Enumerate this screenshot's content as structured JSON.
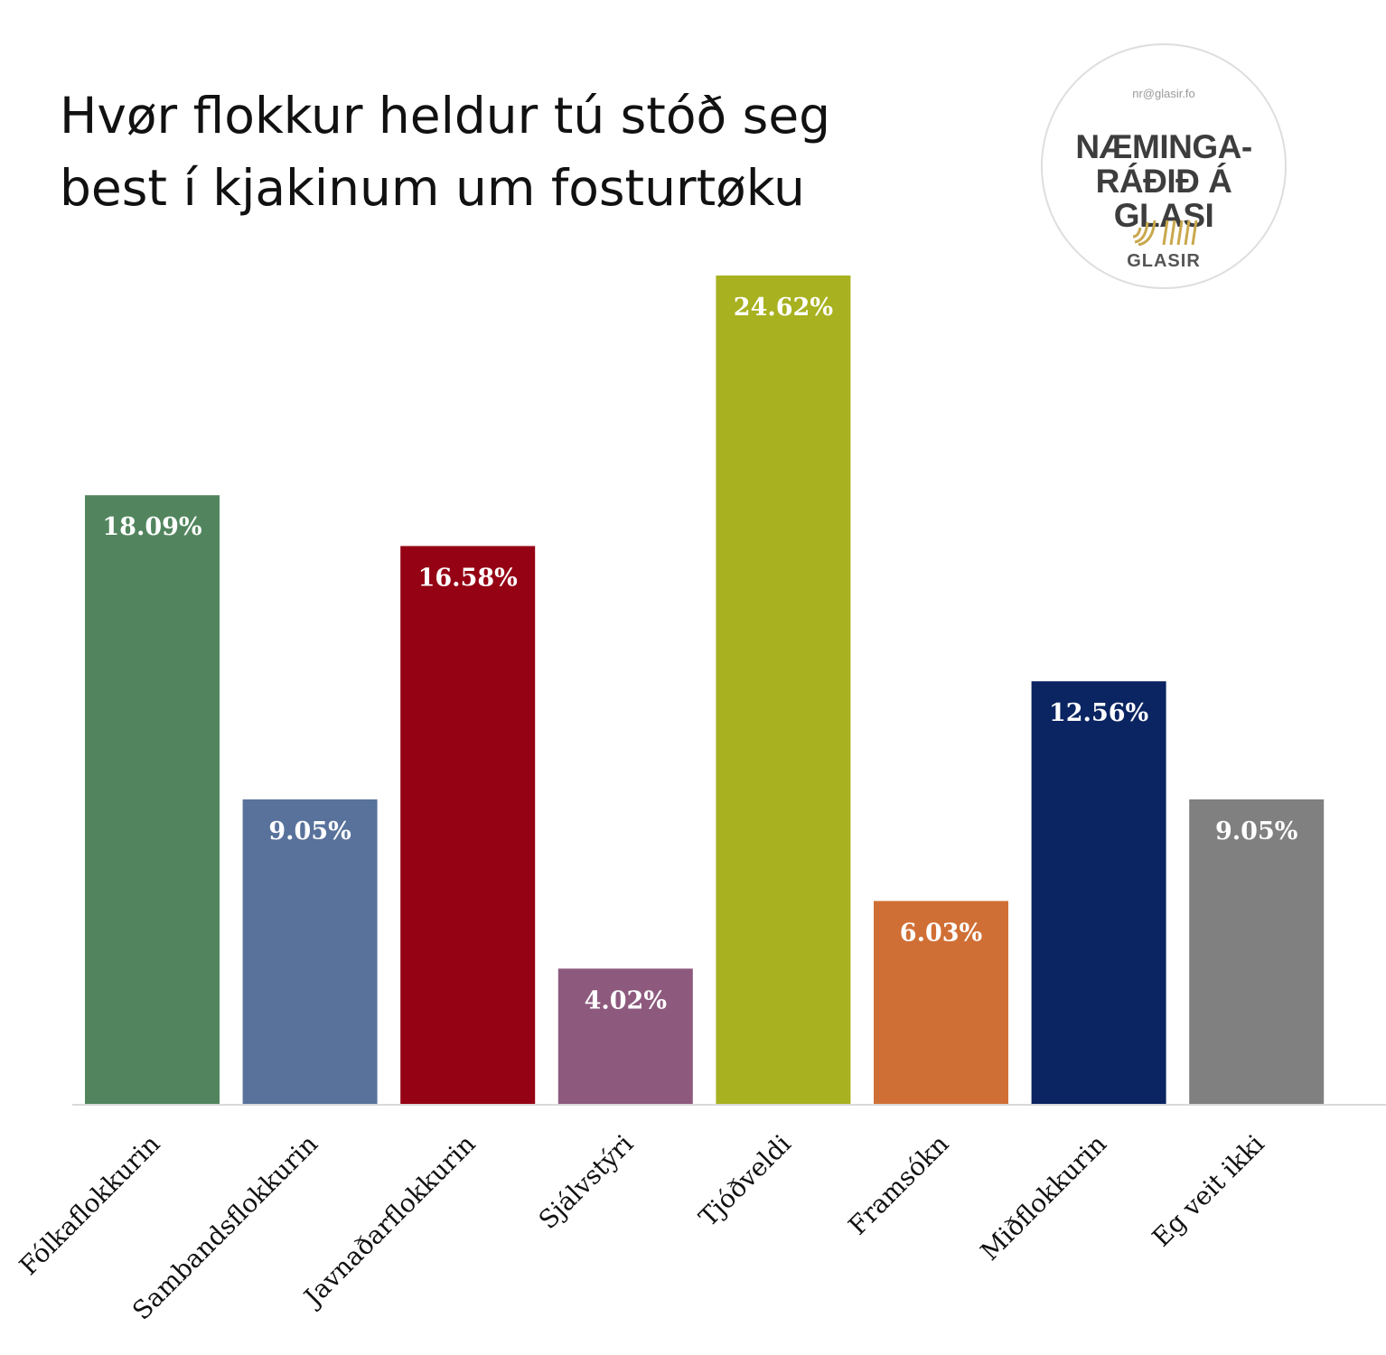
{
  "title_lines": [
    "Hvør flokkur heldur tú stóð seg",
    "best í kjakinum um fosturtøku"
  ],
  "logo": {
    "email": "nr@glasir.fo",
    "name_lines": [
      "NÆMINGA-",
      "RÁÐIÐ Á GLASI"
    ],
    "brand": "GLASIR",
    "mark_color": "#c9a84c"
  },
  "chart_data": {
    "type": "bar",
    "title": "Hvør flokkur heldur tú stóð seg best í kjakinum um fosturtøku",
    "xlabel": "",
    "ylabel": "",
    "ylim": [
      0,
      24.62
    ],
    "grid": false,
    "categories": [
      "Fólkaflokkurin",
      "Sambandsflokkurin",
      "Javnaðarflokkurin",
      "Sjálvstýri",
      "Tjóðveldi",
      "Framsókn",
      "Miðflokkurin",
      "Eg veit ikki"
    ],
    "values": [
      18.09,
      9.05,
      16.58,
      4.02,
      24.62,
      6.03,
      12.56,
      9.05
    ],
    "data_labels": [
      "18.09%",
      "9.05%",
      "16.58%",
      "4.02%",
      "24.62%",
      "6.03%",
      "12.56%",
      "9.05%"
    ],
    "colors": [
      "#52855e",
      "#58729b",
      "#950214",
      "#8d5a7e",
      "#a8b11f",
      "#d06f35",
      "#0b2462",
      "#808080"
    ]
  },
  "axis_color": "#d9d9d9"
}
